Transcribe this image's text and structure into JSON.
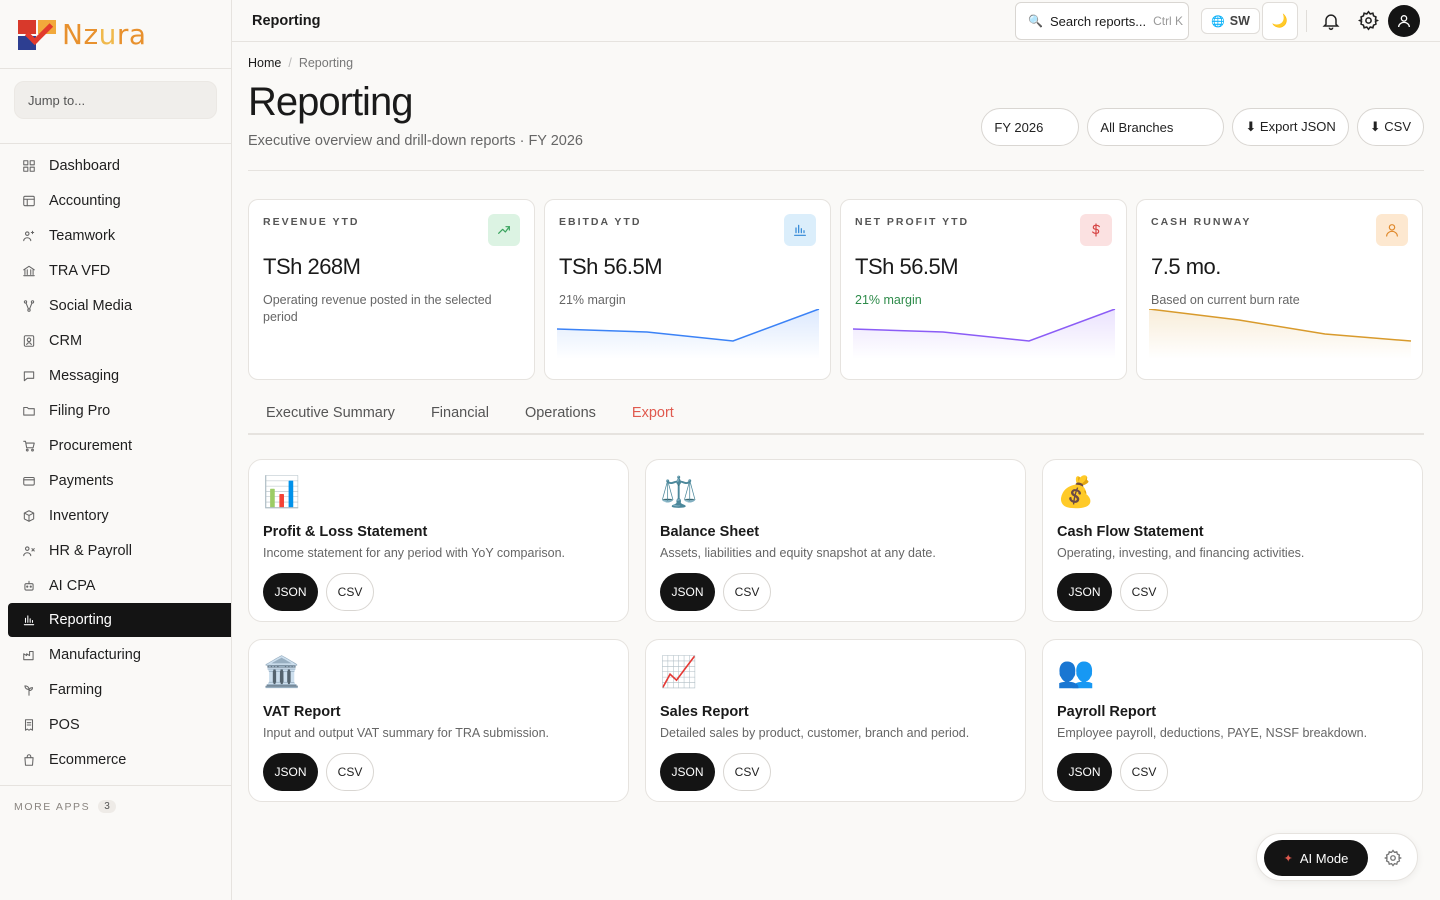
{
  "brand": {
    "name_a": "Nz",
    "name_b": "u",
    "name_c": "ra"
  },
  "sidebar": {
    "jump_placeholder": "Jump to...",
    "items": [
      {
        "label": "Dashboard",
        "icon": "grid-icon"
      },
      {
        "label": "Accounting",
        "icon": "ledger-icon"
      },
      {
        "label": "Teamwork",
        "icon": "users-icon"
      },
      {
        "label": "TRA VFD",
        "icon": "bank-icon"
      },
      {
        "label": "Social Media",
        "icon": "share-icon"
      },
      {
        "label": "CRM",
        "icon": "contact-icon"
      },
      {
        "label": "Messaging",
        "icon": "chat-icon"
      },
      {
        "label": "Filing Pro",
        "icon": "folder-icon"
      },
      {
        "label": "Procurement",
        "icon": "cart-icon"
      },
      {
        "label": "Payments",
        "icon": "card-icon"
      },
      {
        "label": "Inventory",
        "icon": "box-icon"
      },
      {
        "label": "HR & Payroll",
        "icon": "user-plus-icon"
      },
      {
        "label": "AI CPA",
        "icon": "robot-icon"
      },
      {
        "label": "Reporting",
        "icon": "bar-chart-icon",
        "active": true
      },
      {
        "label": "Manufacturing",
        "icon": "factory-icon"
      },
      {
        "label": "Farming",
        "icon": "sprout-icon"
      },
      {
        "label": "POS",
        "icon": "receipt-icon"
      },
      {
        "label": "Ecommerce",
        "icon": "bag-icon"
      }
    ],
    "more_apps_label": "MORE APPS",
    "more_apps_count": "3"
  },
  "topbar": {
    "title": "Reporting",
    "search_label": "Search reports...",
    "search_shortcut": "Ctrl K",
    "lang": "SW",
    "theme_icon": "🌙"
  },
  "breadcrumb": {
    "home": "Home",
    "sep": "/",
    "current": "Reporting"
  },
  "page": {
    "title": "Reporting",
    "subtitle": "Executive overview and drill-down reports · FY 2026"
  },
  "filters": {
    "year": "FY 2026",
    "branch": "All Branches",
    "export_json": "⬇ Export JSON",
    "export_csv": "⬇ CSV"
  },
  "kpis": [
    {
      "label": "REVENUE YTD",
      "value": "TSh 268M",
      "sub": "Operating revenue posted in the selected period",
      "icon": "trend-up-icon",
      "badge_color": "#dcf3e3",
      "icon_color": "#3aa35e"
    },
    {
      "label": "EBITDA YTD",
      "value": "TSh 56.5M",
      "sub": "21% margin",
      "icon": "bar-chart-icon",
      "badge_color": "#dbeefb",
      "icon_color": "#2f86d6",
      "line_color": "#3b82f6"
    },
    {
      "label": "NET PROFIT YTD",
      "value": "TSh 56.5M",
      "sub": "21% margin",
      "icon": "dollar-icon",
      "badge_color": "#fbe1e1",
      "icon_color": "#d64545",
      "line_color": "#8b5cf6"
    },
    {
      "label": "CASH RUNWAY",
      "value": "7.5 mo.",
      "sub": "Based on current burn rate",
      "icon": "person-icon",
      "badge_color": "#fde8d0",
      "icon_color": "#e08a2e",
      "line_color": "#d89a2c"
    }
  ],
  "tabs": [
    "Executive Summary",
    "Financial",
    "Operations",
    "Export"
  ],
  "active_tab": "Export",
  "reports": [
    {
      "emoji": "📊",
      "title": "Profit & Loss Statement",
      "desc": "Income statement for any period with YoY comparison.",
      "json": "JSON",
      "csv": "CSV"
    },
    {
      "emoji": "⚖️",
      "title": "Balance Sheet",
      "desc": "Assets, liabilities and equity snapshot at any date.",
      "json": "JSON",
      "csv": "CSV"
    },
    {
      "emoji": "💰",
      "title": "Cash Flow Statement",
      "desc": "Operating, investing, and financing activities.",
      "json": "JSON",
      "csv": "CSV"
    },
    {
      "emoji": "🏛️",
      "title": "VAT Report",
      "desc": "Input and output VAT summary for TRA submission.",
      "json": "JSON",
      "csv": "CSV"
    },
    {
      "emoji": "📈",
      "title": "Sales Report",
      "desc": "Detailed sales by product, customer, branch and period.",
      "json": "JSON",
      "csv": "CSV"
    },
    {
      "emoji": "👥",
      "title": "Payroll Report",
      "desc": "Employee payroll, deductions, PAYE, NSSF breakdown.",
      "json": "JSON",
      "csv": "CSV"
    }
  ],
  "ai": {
    "label": "AI Mode"
  }
}
